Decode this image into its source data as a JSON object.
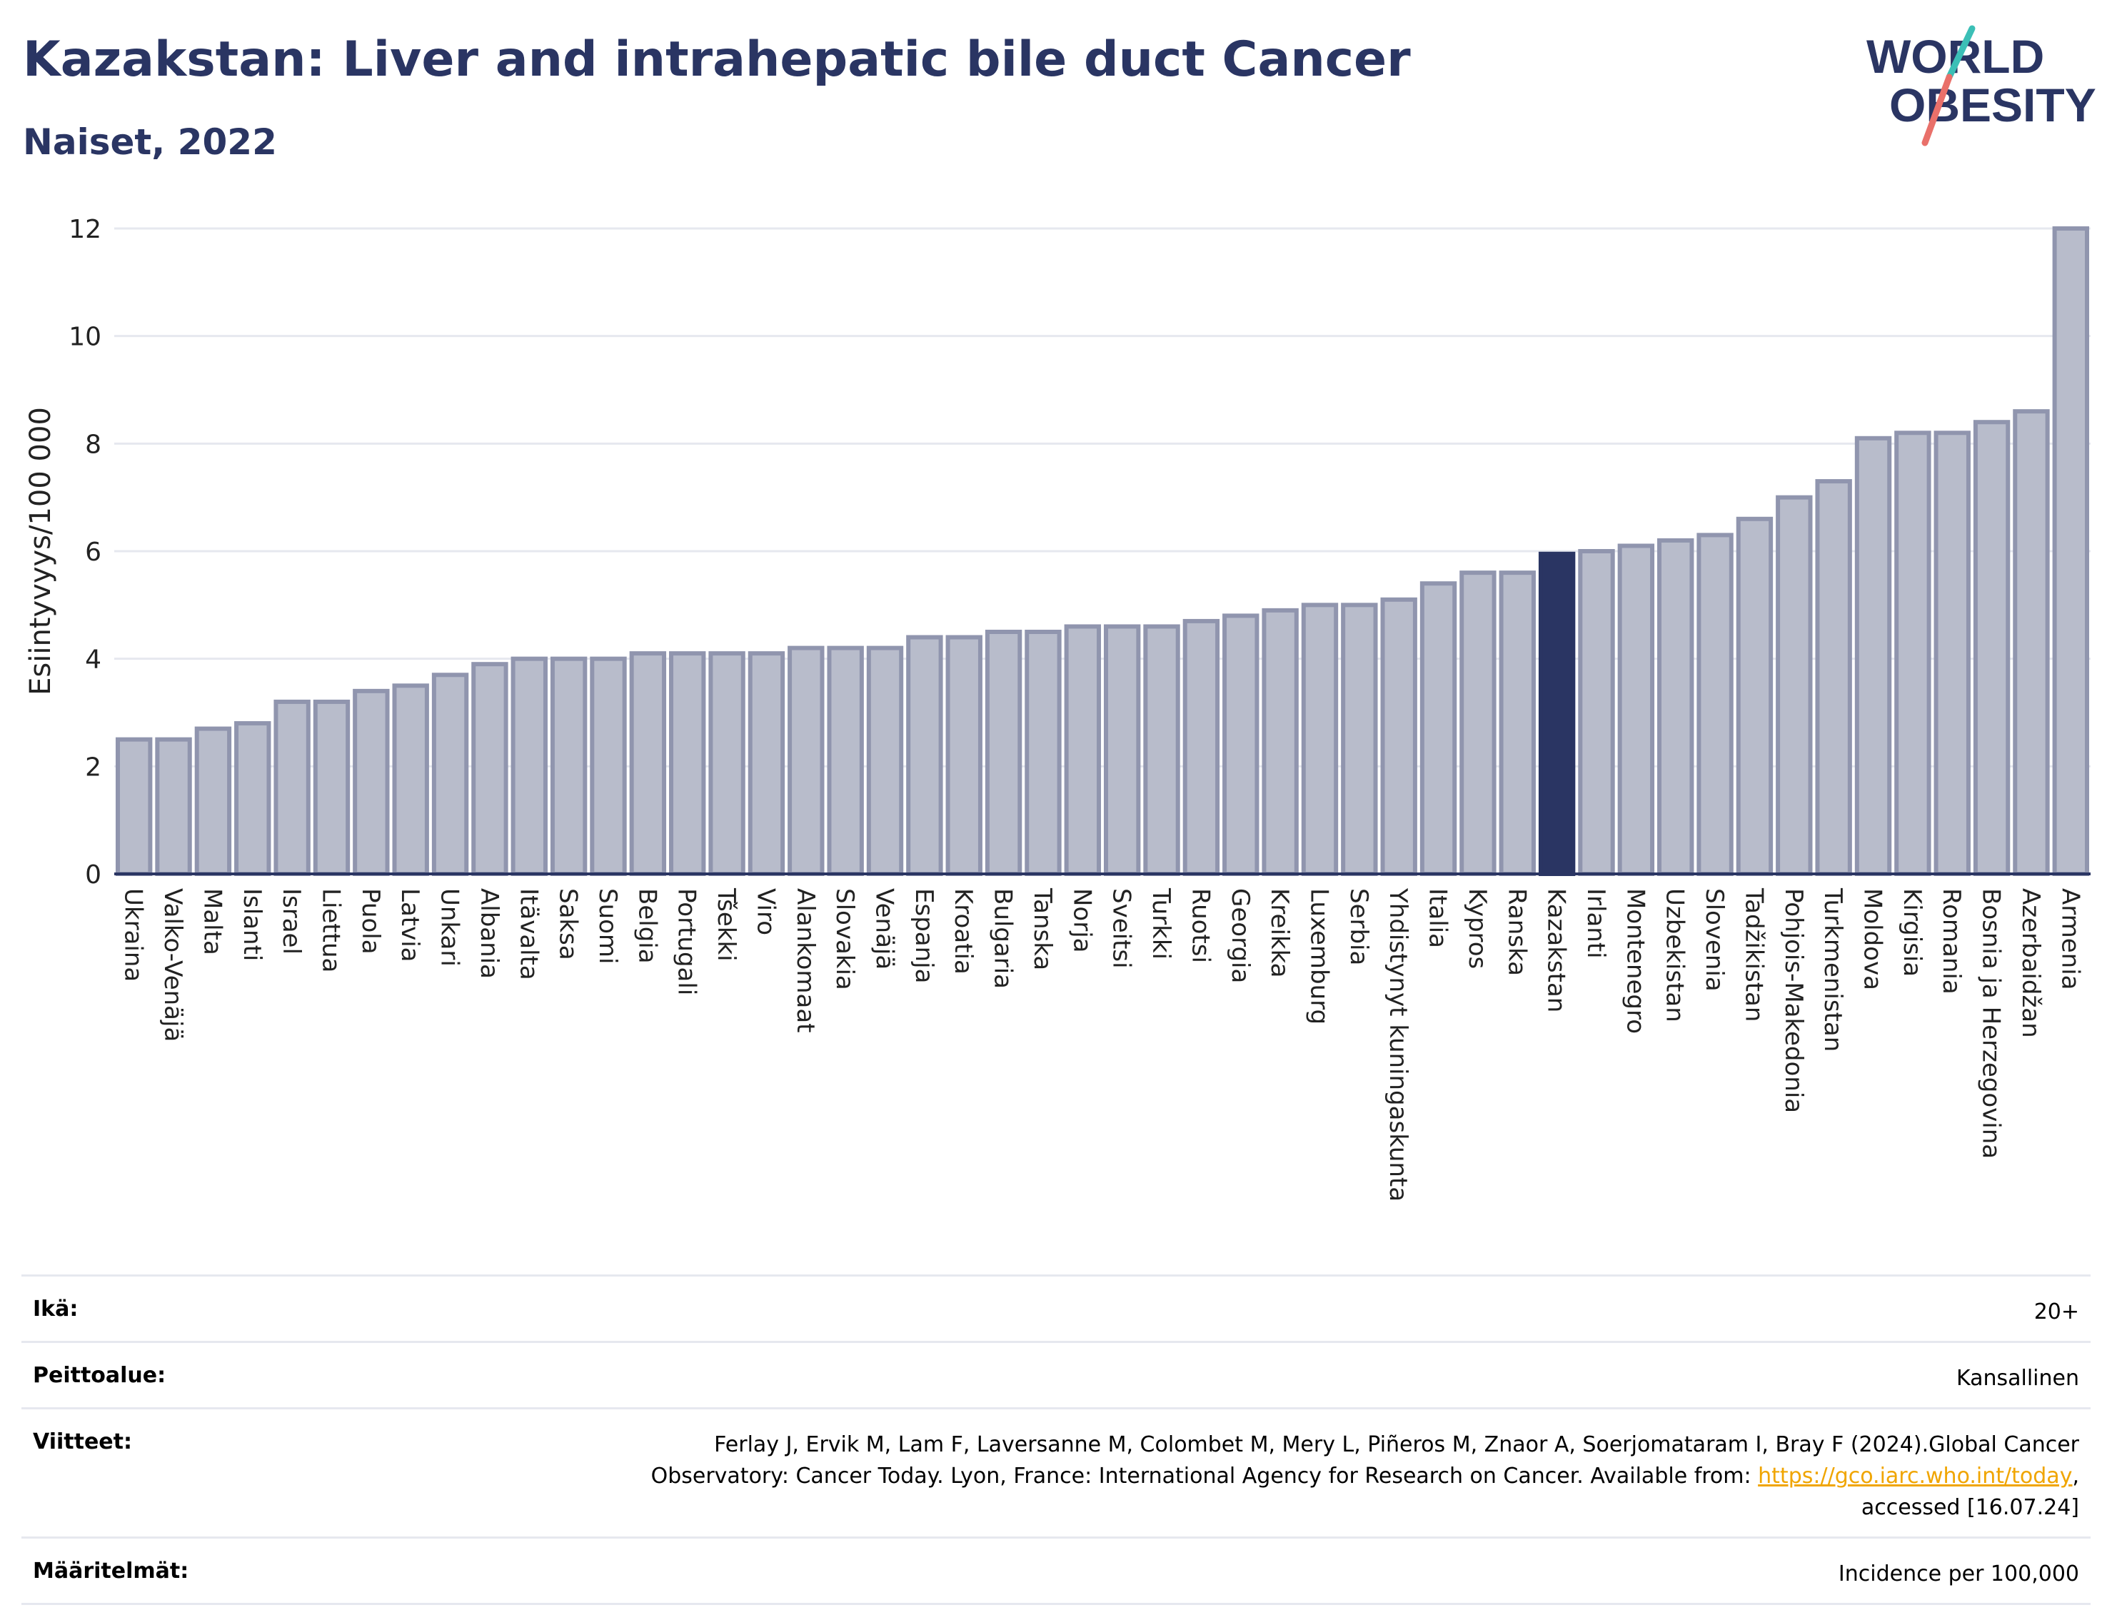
{
  "header": {
    "title": "Kazakstan: Liver and intrahepatic bile duct Cancer",
    "subtitle": "Naiset, 2022"
  },
  "logo": {
    "line1": "WORLD",
    "line2": "OBESITY"
  },
  "colors": {
    "bar_fill": "#b8bccb",
    "bar_stroke": "#9095ae",
    "highlight": "#2a3563",
    "title": "#2a3563",
    "grid": "#e6e8ef",
    "logo_teal": "#3bbfb6",
    "logo_red": "#e9706a",
    "link": "#f0a500"
  },
  "chart_data": {
    "type": "bar",
    "title": "Kazakstan: Liver and intrahepatic bile duct Cancer",
    "subtitle": "Naiset, 2022",
    "xlabel": "",
    "ylabel": "Esiintyvyys/100 000",
    "ylim": [
      0,
      12
    ],
    "yticks": [
      0,
      2,
      4,
      6,
      8,
      10,
      12
    ],
    "grid": true,
    "highlight": "Kazakstan",
    "categories": [
      "Ukraina",
      "Valko-Venäjä",
      "Malta",
      "Islanti",
      "Israel",
      "Liettua",
      "Puola",
      "Latvia",
      "Unkari",
      "Albania",
      "Itävalta",
      "Saksa",
      "Suomi",
      "Belgia",
      "Portugali",
      "Tšekki",
      "Viro",
      "Alankomaat",
      "Slovakia",
      "Venäjä",
      "Espanja",
      "Kroatia",
      "Bulgaria",
      "Tanska",
      "Norja",
      "Sveitsi",
      "Turkki",
      "Ruotsi",
      "Georgia",
      "Kreikka",
      "Luxemburg",
      "Serbia",
      "Yhdistynyt kuningaskunta",
      "Italia",
      "Kypros",
      "Ranska",
      "Kazakstan",
      "Irlanti",
      "Montenegro",
      "Uzbekistan",
      "Slovenia",
      "Tadžikistan",
      "Pohjois-Makedonia",
      "Turkmenistan",
      "Moldova",
      "Kirgisia",
      "Romania",
      "Bosnia ja Herzegovina",
      "Azerbaidžan",
      "Armenia"
    ],
    "values": [
      2.5,
      2.5,
      2.7,
      2.8,
      3.2,
      3.2,
      3.4,
      3.5,
      3.7,
      3.9,
      4.0,
      4.0,
      4.0,
      4.1,
      4.1,
      4.1,
      4.1,
      4.2,
      4.2,
      4.2,
      4.4,
      4.4,
      4.5,
      4.5,
      4.6,
      4.6,
      4.6,
      4.7,
      4.8,
      4.9,
      5.0,
      5.0,
      5.1,
      5.4,
      5.6,
      5.6,
      5.95,
      6.0,
      6.1,
      6.2,
      6.3,
      6.6,
      7.0,
      7.3,
      8.1,
      8.2,
      8.2,
      8.4,
      8.6,
      12.0
    ]
  },
  "info": {
    "age_label": "Ikä:",
    "age_value": "20+",
    "coverage_label": "Peittoalue:",
    "coverage_value": "Kansallinen",
    "refs_label": "Viitteet:",
    "refs_line1": "Ferlay J, Ervik M, Lam F, Laversanne M, Colombet M, Mery L, Piñeros M, Znaor A, Soerjomataram I, Bray F (2024).Global Cancer",
    "refs_line2": "Observatory: Cancer Today. Lyon, France: International Agency for Research on Cancer. Available from: ",
    "refs_link": "https://gco.iarc.who.int/today",
    "refs_line2_end": ",",
    "refs_line3": "accessed [16.07.24]",
    "defs_label": "Määritelmät:",
    "defs_value": "Incidence per 100,000"
  }
}
